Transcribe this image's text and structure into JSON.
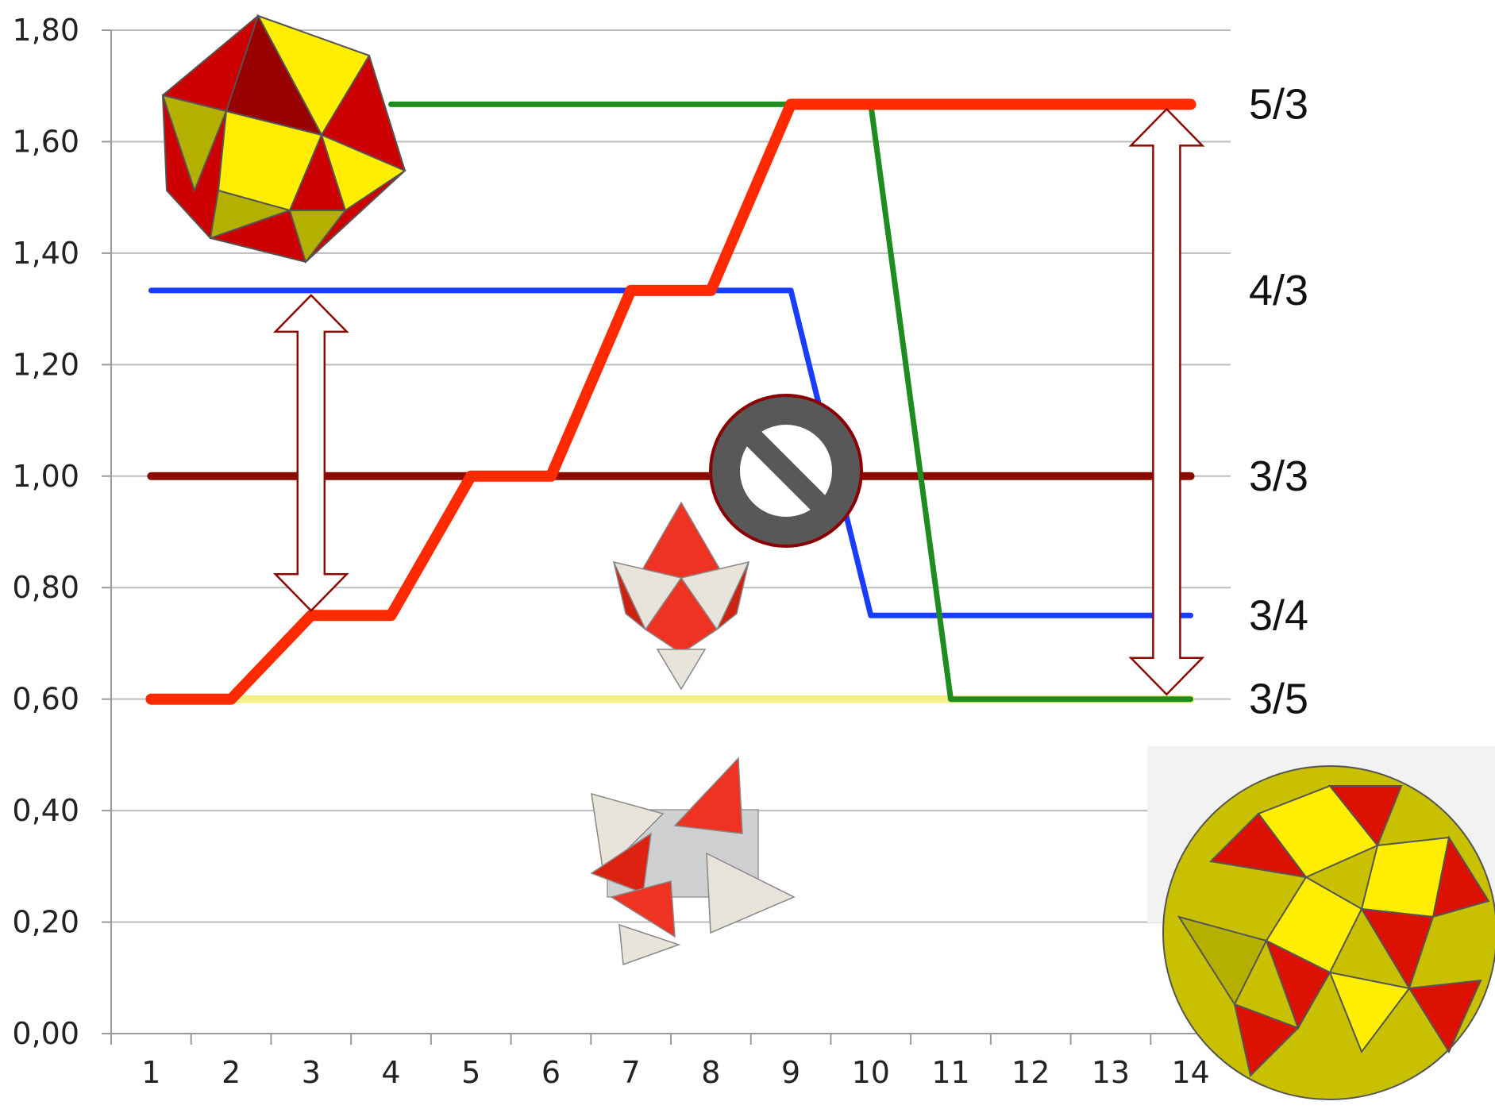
{
  "chart_data": {
    "type": "line",
    "title": "",
    "xlabel": "",
    "ylabel": "",
    "x": [
      1,
      2,
      3,
      4,
      5,
      6,
      7,
      8,
      9,
      10,
      11,
      12,
      13,
      14
    ],
    "x_tick_labels": [
      "1",
      "2",
      "3",
      "4",
      "5",
      "6",
      "7",
      "8",
      "9",
      "10",
      "11",
      "12",
      "13",
      "14"
    ],
    "y_tick_labels": [
      "0,00",
      "0,20",
      "0,40",
      "0,60",
      "0,80",
      "1,00",
      "1,20",
      "1,40",
      "1,60",
      "1,80"
    ],
    "y_ticks": [
      0,
      0.2,
      0.4,
      0.6,
      0.8,
      1.0,
      1.2,
      1.4,
      1.6,
      1.8
    ],
    "xlim": [
      0.5,
      14.5
    ],
    "ylim": [
      0,
      1.8
    ],
    "grid": "horizontal",
    "legend": "none",
    "series": [
      {
        "color": "#ff2a00",
        "values": [
          0.6,
          0.6,
          0.75,
          0.75,
          1.0,
          1.0,
          1.333,
          1.333,
          1.667,
          1.667,
          1.667,
          1.667,
          1.667,
          1.667
        ]
      },
      {
        "color": "#1a3cff",
        "values": [
          1.333,
          1.333,
          1.333,
          1.333,
          1.333,
          1.333,
          1.333,
          1.333,
          1.333,
          0.75,
          0.75,
          0.75,
          0.75,
          0.75
        ]
      },
      {
        "color": "#1f8c1f",
        "values": [
          null,
          null,
          null,
          1.667,
          1.667,
          1.667,
          1.667,
          1.667,
          1.667,
          1.667,
          0.6,
          0.6,
          0.6,
          0.6
        ]
      },
      {
        "color": "#8b0a00",
        "values": [
          1.0,
          1.0,
          1.0,
          1.0,
          1.0,
          1.0,
          1.0,
          1.0,
          1.0,
          1.0,
          1.0,
          1.0,
          1.0,
          1.0
        ]
      },
      {
        "color": "#f5f08a",
        "values": [
          0.6,
          0.6,
          0.6,
          0.6,
          0.6,
          0.6,
          0.6,
          0.6,
          0.6,
          0.6,
          0.6,
          0.6,
          0.6,
          0.6
        ]
      }
    ],
    "ratio_labels": [
      {
        "text": "5/3",
        "value": 1.667
      },
      {
        "text": "4/3",
        "value": 1.333
      },
      {
        "text": "3/3",
        "value": 1.0
      },
      {
        "text": "3/4",
        "value": 0.75
      },
      {
        "text": "3/5",
        "value": 0.6
      }
    ],
    "arrows": [
      {
        "x": 3,
        "from": 1.333,
        "to": 0.75
      },
      {
        "x": 13.7,
        "from": 1.667,
        "to": 0.6
      }
    ]
  }
}
